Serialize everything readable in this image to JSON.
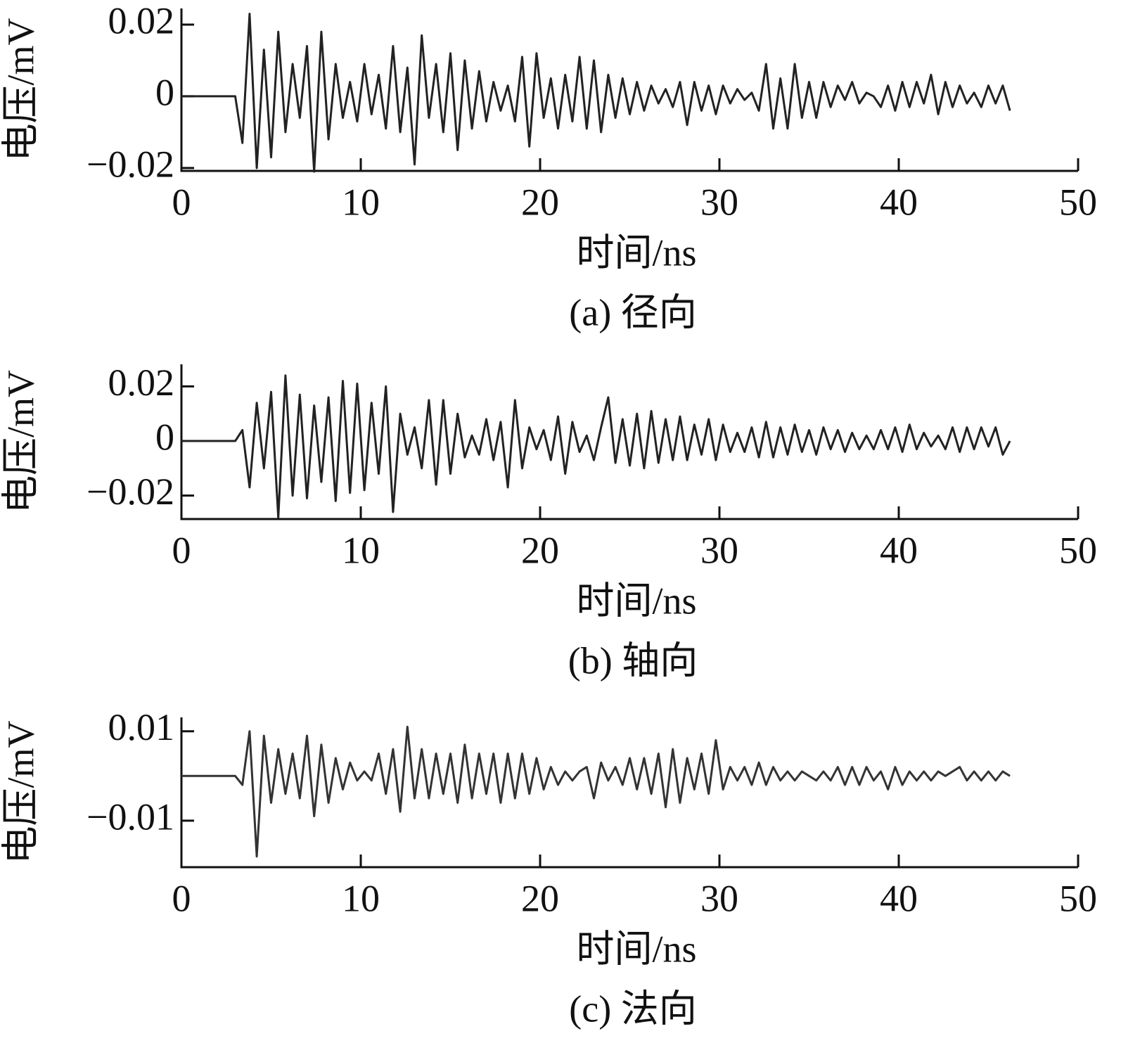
{
  "chart_data": [
    {
      "type": "line",
      "ylabel": "电压/mV",
      "xlabel": "时间/ns",
      "caption": "(a)  径向",
      "xlim": [
        0,
        50
      ],
      "xticks": [
        0,
        10,
        20,
        30,
        40,
        50
      ],
      "ylim": [
        -0.0208,
        0.0245
      ],
      "yticks": [
        {
          "value": -0.02,
          "label": "−0.02"
        },
        0,
        0.02
      ],
      "x": [
        0,
        3,
        3.4,
        3.8,
        4.2,
        4.6,
        5,
        5.4,
        5.8,
        6.2,
        6.6,
        7,
        7.4,
        7.8,
        8.2,
        8.6,
        9,
        9.4,
        9.8,
        10.2,
        10.6,
        11,
        11.4,
        11.8,
        12.2,
        12.6,
        13,
        13.4,
        13.8,
        14.2,
        14.6,
        15,
        15.4,
        15.8,
        16.2,
        16.6,
        17,
        17.4,
        17.8,
        18.2,
        18.6,
        19,
        19.4,
        19.8,
        20.2,
        20.6,
        21,
        21.4,
        21.8,
        22.2,
        22.6,
        23,
        23.4,
        23.8,
        24.2,
        24.6,
        25,
        25.4,
        25.8,
        26.2,
        26.6,
        27,
        27.4,
        27.8,
        28.2,
        28.6,
        29,
        29.4,
        29.8,
        30.2,
        30.6,
        31,
        31.4,
        31.8,
        32.2,
        32.6,
        33,
        33.4,
        33.8,
        34.2,
        34.6,
        35,
        35.4,
        35.8,
        36.2,
        36.6,
        37,
        37.4,
        37.8,
        38.2,
        38.6,
        39,
        39.4,
        39.8,
        40.2,
        40.6,
        41,
        41.4,
        41.8,
        42.2,
        42.6,
        43,
        43.4,
        43.8,
        44.2,
        44.6,
        45,
        45.4,
        45.8,
        46.2
      ],
      "series": [
        {
          "color": "#222222",
          "values": [
            0,
            0,
            -0.013,
            0.023,
            -0.02,
            0.013,
            -0.017,
            0.018,
            -0.01,
            0.009,
            -0.006,
            0.014,
            -0.021,
            0.018,
            -0.012,
            0.009,
            -0.006,
            0.004,
            -0.007,
            0.009,
            -0.005,
            0.006,
            -0.009,
            0.014,
            -0.01,
            0.008,
            -0.019,
            0.017,
            -0.006,
            0.009,
            -0.01,
            0.012,
            -0.015,
            0.01,
            -0.009,
            0.007,
            -0.007,
            0.004,
            -0.004,
            0.003,
            -0.007,
            0.011,
            -0.014,
            0.012,
            -0.006,
            0.005,
            -0.009,
            0.006,
            -0.007,
            0.011,
            -0.009,
            0.01,
            -0.01,
            0.006,
            -0.006,
            0.005,
            -0.005,
            0.004,
            -0.004,
            0.003,
            -0.002,
            0.002,
            -0.003,
            0.004,
            -0.008,
            0.004,
            -0.004,
            0.003,
            -0.005,
            0.003,
            -0.002,
            0.002,
            -0.001,
            0.001,
            -0.004,
            0.009,
            -0.009,
            0.005,
            -0.009,
            0.009,
            -0.006,
            0.004,
            -0.006,
            0.004,
            -0.003,
            0.003,
            -0.001,
            0.004,
            -0.002,
            0.001,
            0,
            -0.003,
            0.003,
            -0.004,
            0.004,
            -0.003,
            0.004,
            -0.002,
            0.006,
            -0.005,
            0.004,
            -0.003,
            0.003,
            -0.002,
            0.001,
            -0.003,
            0.003,
            -0.002,
            0.003,
            -0.004
          ]
        }
      ]
    },
    {
      "type": "line",
      "ylabel": "电压/mV",
      "xlabel": "时间/ns",
      "caption": "(b)  轴向",
      "xlim": [
        0,
        50
      ],
      "xticks": [
        0,
        10,
        20,
        30,
        40,
        50
      ],
      "ylim": [
        -0.0286,
        0.0281
      ],
      "yticks": [
        {
          "value": -0.02,
          "label": "−0.02"
        },
        0,
        0.02
      ],
      "x": [
        0,
        3,
        3.4,
        3.8,
        4.2,
        4.6,
        5,
        5.4,
        5.8,
        6.2,
        6.6,
        7,
        7.4,
        7.8,
        8.2,
        8.6,
        9,
        9.4,
        9.8,
        10.2,
        10.6,
        11,
        11.4,
        11.8,
        12.2,
        12.6,
        13,
        13.4,
        13.8,
        14.2,
        14.6,
        15,
        15.4,
        15.8,
        16.2,
        16.6,
        17,
        17.4,
        17.8,
        18.2,
        18.6,
        19,
        19.4,
        19.8,
        20.2,
        20.6,
        21,
        21.4,
        21.8,
        22.2,
        22.6,
        23,
        23.4,
        23.8,
        24.2,
        24.6,
        25,
        25.4,
        25.8,
        26.2,
        26.6,
        27,
        27.4,
        27.8,
        28.2,
        28.6,
        29,
        29.4,
        29.8,
        30.2,
        30.6,
        31,
        31.4,
        31.8,
        32.2,
        32.6,
        33,
        33.4,
        33.8,
        34.2,
        34.6,
        35,
        35.4,
        35.8,
        36.2,
        36.6,
        37,
        37.4,
        37.8,
        38.2,
        38.6,
        39,
        39.4,
        39.8,
        40.2,
        40.6,
        41,
        41.4,
        41.8,
        42.2,
        42.6,
        43,
        43.4,
        43.8,
        44.2,
        44.6,
        45,
        45.4,
        45.8,
        46.2
      ],
      "series": [
        {
          "color": "#222222",
          "values": [
            0,
            0,
            0.004,
            -0.017,
            0.014,
            -0.01,
            0.018,
            -0.028,
            0.024,
            -0.02,
            0.017,
            -0.021,
            0.013,
            -0.015,
            0.016,
            -0.022,
            0.022,
            -0.019,
            0.021,
            -0.018,
            0.014,
            -0.012,
            0.02,
            -0.026,
            0.01,
            -0.005,
            0.005,
            -0.01,
            0.015,
            -0.016,
            0.015,
            -0.012,
            0.01,
            -0.006,
            0.002,
            -0.005,
            0.008,
            -0.007,
            0.007,
            -0.017,
            0.015,
            -0.01,
            0.005,
            -0.003,
            0.004,
            -0.007,
            0.009,
            -0.012,
            0.007,
            -0.004,
            0.002,
            -0.007,
            0.005,
            0.016,
            -0.008,
            0.008,
            -0.009,
            0.01,
            -0.01,
            0.011,
            -0.008,
            0.008,
            -0.007,
            0.009,
            -0.007,
            0.006,
            -0.005,
            0.008,
            -0.007,
            0.006,
            -0.004,
            0.003,
            -0.004,
            0.005,
            -0.006,
            0.007,
            -0.006,
            0.005,
            -0.005,
            0.006,
            -0.004,
            0.004,
            -0.005,
            0.005,
            -0.003,
            0.004,
            -0.004,
            0.003,
            -0.003,
            0.002,
            -0.003,
            0.004,
            -0.003,
            0.005,
            -0.004,
            0.006,
            -0.003,
            0.003,
            -0.002,
            0.002,
            -0.003,
            0.005,
            -0.004,
            0.005,
            -0.003,
            0.005,
            -0.002,
            0.005,
            -0.005,
            0
          ]
        }
      ]
    },
    {
      "type": "line",
      "ylabel": "电压/mV",
      "xlabel": "时间/ns",
      "caption": "(c)  法向",
      "xlim": [
        0,
        50
      ],
      "xticks": [
        0,
        10,
        20,
        30,
        40,
        50
      ],
      "ylim": [
        -0.0204,
        0.0131
      ],
      "yticks": [
        {
          "value": -0.01,
          "label": "−0.01"
        },
        0.01
      ],
      "x": [
        0,
        3,
        3.4,
        3.8,
        4.2,
        4.6,
        5,
        5.4,
        5.8,
        6.2,
        6.6,
        7,
        7.4,
        7.8,
        8.2,
        8.6,
        9,
        9.4,
        9.8,
        10.2,
        10.6,
        11,
        11.4,
        11.8,
        12.2,
        12.6,
        13,
        13.4,
        13.8,
        14.2,
        14.6,
        15,
        15.4,
        15.8,
        16.2,
        16.6,
        17,
        17.4,
        17.8,
        18.2,
        18.6,
        19,
        19.4,
        19.8,
        20.2,
        20.6,
        21,
        21.4,
        21.8,
        22.2,
        22.6,
        23,
        23.4,
        23.8,
        24.2,
        24.6,
        25,
        25.4,
        25.8,
        26.2,
        26.6,
        27,
        27.4,
        27.8,
        28.2,
        28.6,
        29,
        29.4,
        29.8,
        30.2,
        30.6,
        31,
        31.4,
        31.8,
        32.2,
        32.6,
        33,
        33.4,
        33.8,
        34.2,
        34.6,
        35,
        35.4,
        35.8,
        36.2,
        36.6,
        37,
        37.4,
        37.8,
        38.2,
        38.6,
        39,
        39.4,
        39.8,
        40.2,
        40.6,
        41,
        41.4,
        41.8,
        42.2,
        42.6,
        43,
        43.4,
        43.8,
        44.2,
        44.6,
        45,
        45.4,
        45.8,
        46.2
      ],
      "series": [
        {
          "color": "#333333",
          "values": [
            0,
            0,
            -0.002,
            0.01,
            -0.018,
            0.009,
            -0.006,
            0.006,
            -0.004,
            0.005,
            -0.005,
            0.009,
            -0.009,
            0.007,
            -0.006,
            0.004,
            -0.003,
            0.003,
            -0.001,
            0.001,
            -0.001,
            0.005,
            -0.004,
            0.006,
            -0.008,
            0.011,
            -0.005,
            0.006,
            -0.005,
            0.005,
            -0.004,
            0.005,
            -0.006,
            0.007,
            -0.005,
            0.005,
            -0.004,
            0.005,
            -0.006,
            0.005,
            -0.005,
            0.005,
            -0.004,
            0.004,
            -0.003,
            0.002,
            -0.002,
            0.001,
            -0.001,
            0.001,
            0.002,
            -0.005,
            0.003,
            -0.001,
            0.002,
            -0.002,
            0.004,
            -0.003,
            0.004,
            -0.004,
            0.005,
            -0.007,
            0.006,
            -0.006,
            0.004,
            -0.003,
            0.005,
            -0.004,
            0.008,
            -0.003,
            0.002,
            -0.001,
            0.002,
            -0.002,
            0.003,
            -0.002,
            0.002,
            -0.001,
            0.001,
            -0.001,
            0.001,
            0,
            -0.001,
            0.001,
            -0.001,
            0.002,
            -0.002,
            0.002,
            -0.002,
            0.002,
            -0.001,
            0.001,
            -0.003,
            0.002,
            -0.002,
            0.001,
            -0.001,
            0.001,
            -0.001,
            0.001,
            0,
            0.001,
            0.002,
            -0.001,
            0.001,
            -0.001,
            0.001,
            -0.001,
            0.001,
            0
          ]
        }
      ]
    }
  ]
}
